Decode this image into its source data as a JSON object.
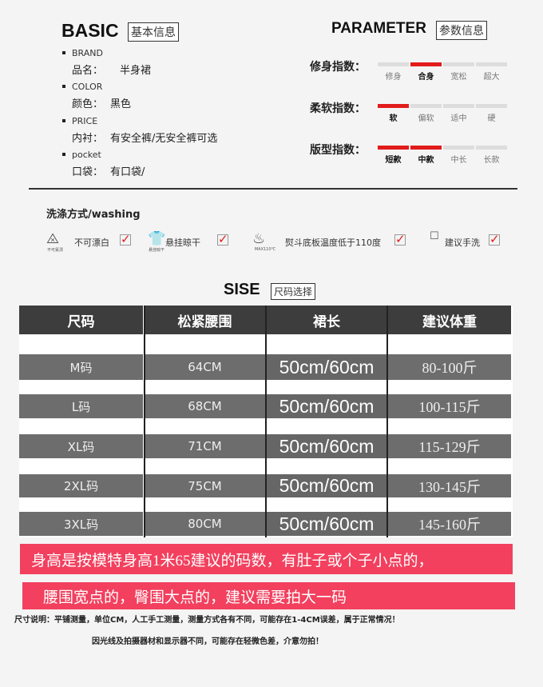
{
  "basic": {
    "title": "BASIC",
    "subtitle": "基本信息",
    "items": [
      {
        "en": "BRAND",
        "label": "品名：",
        "value": "半身裙"
      },
      {
        "en": "COLOR",
        "label": "颜色：",
        "value": "黑色"
      },
      {
        "en": "PRICE",
        "label": "内衬：",
        "value": "有安全裤/无安全裤可选"
      },
      {
        "en": "pocket",
        "label": "口袋：",
        "value": "有口袋/"
      }
    ]
  },
  "parameter": {
    "title": "PARAMETER",
    "subtitle": "参数信息",
    "rows": [
      {
        "label": "修身指数：",
        "options": [
          "修身",
          "合身",
          "宽松",
          "超大"
        ],
        "selected": [
          1
        ]
      },
      {
        "label": "柔软指数：",
        "options": [
          "软",
          "偏软",
          "适中",
          "硬"
        ],
        "selected": [
          0
        ]
      },
      {
        "label": "版型指数：",
        "options": [
          "短款",
          "中款",
          "中长",
          "长款"
        ],
        "selected": [
          0,
          1
        ]
      }
    ]
  },
  "washing": {
    "title": "洗涤方式/washing",
    "items": [
      {
        "icon": "no-bleach-icon",
        "label": "不可漂白",
        "icon_caption": "不可氯漂"
      },
      {
        "icon": "hang-dry-icon",
        "label": "悬挂晾干",
        "icon_caption": "悬挂晾干"
      },
      {
        "icon": "iron-icon",
        "label": "熨斗底板温度低于110度",
        "icon_caption": "MAX110℃"
      },
      {
        "icon": "hand-wash-icon",
        "label": "建议手洗"
      }
    ]
  },
  "size": {
    "title": "SISE",
    "subtitle": "尺码选择",
    "headers": [
      "尺码",
      "松紧腰围",
      "裙长",
      "建议体重"
    ],
    "rows": [
      [
        "M码",
        "64CM",
        "50cm/60cm",
        "80-100斤"
      ],
      [
        "L码",
        "68CM",
        "50cm/60cm",
        "100-115斤"
      ],
      [
        "XL码",
        "71CM",
        "50cm/60cm",
        "115-129斤"
      ],
      [
        "2XL码",
        "75CM",
        "50cm/60cm",
        "130-145斤"
      ],
      [
        "3XL码",
        "80CM",
        "50cm/60cm",
        "145-160斤"
      ]
    ]
  },
  "banners": [
    "身高是按模特身高1米65建议的码数，有肚子或个子小点的，",
    "腰围宽点的，臀围大点的，建议需要拍大一码"
  ],
  "notes": [
    "尺寸说明：平铺测量，单位CM，人工手工测量，测量方式各有不同，可能存在1-4CM误差，属于正常情况！",
    "因光线及拍摄器材和显示器不同，可能存在轻微色差，介意勿拍！"
  ],
  "colors": {
    "accent_red": "#e21b1b",
    "banner": "#f2405e",
    "header": "#3d3d3d",
    "row": "#6d6d6d"
  }
}
